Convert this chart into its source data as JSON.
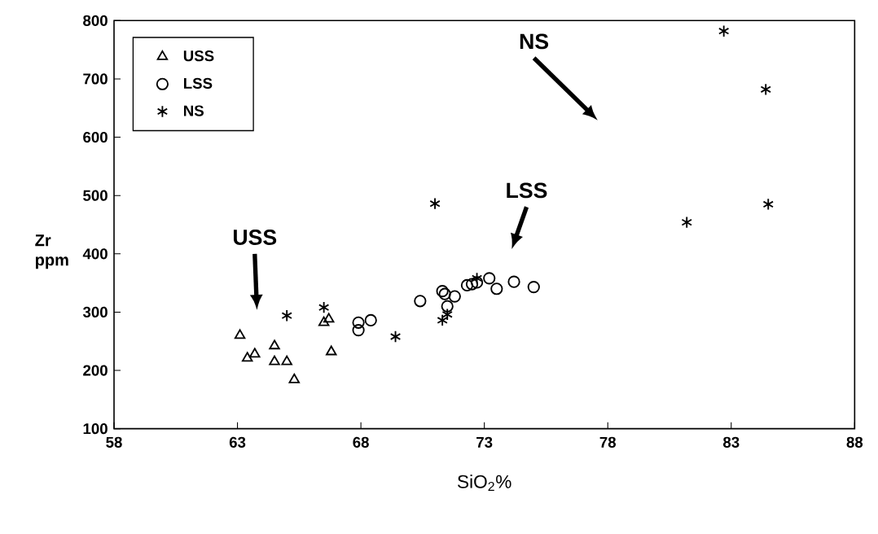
{
  "chart_data": {
    "type": "scatter",
    "xlabel": "SiO$_{2}$%",
    "ylabel": "Zr ppm",
    "xlim": [
      58,
      88
    ],
    "ylim": [
      100,
      800
    ],
    "xticks": [
      58,
      63,
      68,
      73,
      78,
      83,
      88
    ],
    "yticks": [
      100,
      200,
      300,
      400,
      500,
      600,
      700,
      800
    ],
    "grid": false,
    "legend": "top left",
    "series": [
      {
        "name": "USS",
        "color": "#000000",
        "marker": "triangle",
        "x": [
          63.1,
          63.4,
          63.7,
          64.5,
          64.5,
          65.0,
          65.3,
          66.8,
          66.5,
          66.7
        ],
        "values": [
          260,
          221,
          228,
          242,
          215,
          215,
          184,
          232,
          282,
          288
        ]
      },
      {
        "name": "LSS",
        "color": "#000000",
        "marker": "circle",
        "x": [
          67.9,
          67.9,
          68.4,
          70.4,
          71.3,
          71.4,
          71.5,
          71.8,
          72.3,
          72.5,
          72.7,
          73.2,
          73.5,
          74.2,
          75.0
        ],
        "values": [
          282,
          269,
          286,
          319,
          336,
          331,
          310,
          327,
          346,
          348,
          351,
          358,
          340,
          352,
          343
        ]
      },
      {
        "name": "NS",
        "color": "#000000",
        "marker": "cross",
        "x": [
          65.0,
          66.5,
          69.4,
          71.3,
          71.5,
          72.7,
          71.0,
          81.2,
          82.7,
          84.4,
          84.5
        ],
        "values": [
          294,
          308,
          258,
          286,
          296,
          358,
          486,
          454,
          782,
          682,
          485
        ]
      }
    ],
    "annotations": [
      "NS",
      "LSS",
      "USS"
    ]
  }
}
